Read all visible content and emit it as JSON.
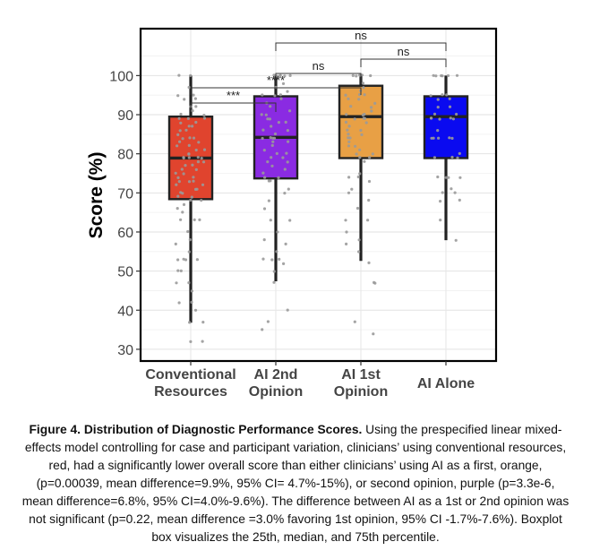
{
  "chart_data": {
    "type": "boxplot",
    "ylabel": "Score (%)",
    "ylim": [
      27,
      112
    ],
    "yticks": [
      30,
      40,
      50,
      60,
      70,
      80,
      90,
      100
    ],
    "grid": true,
    "categories": [
      "Conventional Resources",
      "AI 2nd Opinion",
      "AI 1st Opinion",
      "AI Alone"
    ],
    "xtick_lines": [
      [
        "Conventional",
        "Resources"
      ],
      [
        "AI 2nd",
        "Opinion"
      ],
      [
        "AI 1st",
        "Opinion"
      ],
      [
        "AI Alone"
      ]
    ],
    "series": [
      {
        "name": "Conventional Resources",
        "color": "#e0442e",
        "q1": 68.4,
        "median": 78.9,
        "q3": 89.5,
        "whisker_low": 36.8,
        "whisker_high": 100,
        "points": [
          100,
          100,
          97,
          95,
          95,
          94,
          94,
          92,
          92,
          91,
          90,
          90,
          89,
          89,
          89,
          88,
          88,
          87,
          87,
          86,
          86,
          85,
          84,
          84,
          84,
          83,
          83,
          82,
          82,
          81,
          81,
          80,
          80,
          79,
          79,
          79,
          79,
          79,
          78,
          78,
          77,
          77,
          76,
          76,
          75,
          75,
          74,
          74,
          73,
          73,
          73,
          72,
          72,
          71,
          71,
          70,
          70,
          69,
          69,
          68,
          68,
          67,
          66,
          65,
          63,
          63,
          63,
          60,
          58,
          57,
          55,
          53,
          53,
          53,
          53,
          50,
          50,
          47,
          47,
          45,
          42,
          42,
          40,
          37,
          37,
          32,
          32
        ]
      },
      {
        "name": "AI 2nd Opinion",
        "color": "#8a2be2",
        "q1": 73.7,
        "median": 84.2,
        "q3": 94.7,
        "whisker_low": 47.4,
        "whisker_high": 100,
        "points": [
          100,
          100,
          100,
          100,
          100,
          100,
          98,
          97,
          96,
          95,
          95,
          95,
          94,
          93,
          92,
          91,
          90,
          90,
          89,
          89,
          88,
          88,
          87,
          86,
          86,
          85,
          84,
          84,
          84,
          84,
          83,
          83,
          82,
          81,
          80,
          80,
          79,
          79,
          78,
          78,
          77,
          76,
          75,
          74,
          74,
          73,
          73,
          71,
          70,
          68,
          66,
          63,
          63,
          60,
          58,
          57,
          55,
          53,
          53,
          53,
          52,
          50,
          47,
          40,
          37,
          35
        ]
      },
      {
        "name": "AI 1st Opinion",
        "color": "#e8a045",
        "q1": 78.9,
        "median": 89.5,
        "q3": 97.4,
        "whisker_low": 52.6,
        "whisker_high": 100,
        "points": [
          100,
          100,
          100,
          100,
          100,
          100,
          98,
          97,
          96,
          95,
          95,
          95,
          94,
          94,
          93,
          92,
          92,
          91,
          90,
          90,
          90,
          89,
          89,
          89,
          88,
          88,
          87,
          86,
          86,
          85,
          85,
          84,
          84,
          83,
          82,
          82,
          81,
          80,
          80,
          79,
          79,
          78,
          75,
          74,
          74,
          73,
          71,
          70,
          68,
          66,
          63,
          63,
          60,
          58,
          57,
          55,
          52,
          47,
          47,
          37,
          34
        ]
      },
      {
        "name": "AI Alone",
        "color": "#0a0af0",
        "q1": 78.9,
        "median": 89.5,
        "q3": 94.7,
        "whisker_low": 57.9,
        "whisker_high": 100,
        "points": [
          100,
          100,
          100,
          100,
          100,
          100,
          95,
          95,
          95,
          94,
          94,
          92,
          92,
          90,
          90,
          89,
          89,
          89,
          89,
          89,
          86,
          84,
          84,
          84,
          84,
          84,
          80,
          79,
          79,
          79,
          74,
          74,
          74,
          74,
          71,
          70,
          70,
          68,
          68,
          63,
          58
        ]
      }
    ],
    "comparisons": [
      {
        "group1": 0,
        "group2": 1,
        "label": "***"
      },
      {
        "group1": 0,
        "group2": 2,
        "label": "****"
      },
      {
        "group1": 1,
        "group2": 2,
        "label": "ns"
      },
      {
        "group1": 2,
        "group2": 3,
        "label": "ns"
      },
      {
        "group1": 1,
        "group2": 3,
        "label": "ns"
      }
    ]
  },
  "caption": {
    "title": "Figure 4. Distribution of Diagnostic Performance Scores.",
    "body": " Using the prespecified linear mixed-effects model controlling for case and participant variation, clinicians’ using conventional resources, red, had a significantly lower overall score than either clinicians’ using AI as a first, orange, (p=0.00039, mean difference=9.9%, 95% CI= 4.7%-15%), or second opinion, purple (p=3.3e-6, mean difference=6.8%, 95% CI=4.0%-9.6%). The difference between AI as a 1st or 2nd opinion was not significant (p=0.22, mean difference =3.0% favoring 1st opinion, 95% CI -1.7%-7.6%). Boxplot box visualizes the 25th, median, and 75th percentile."
  }
}
